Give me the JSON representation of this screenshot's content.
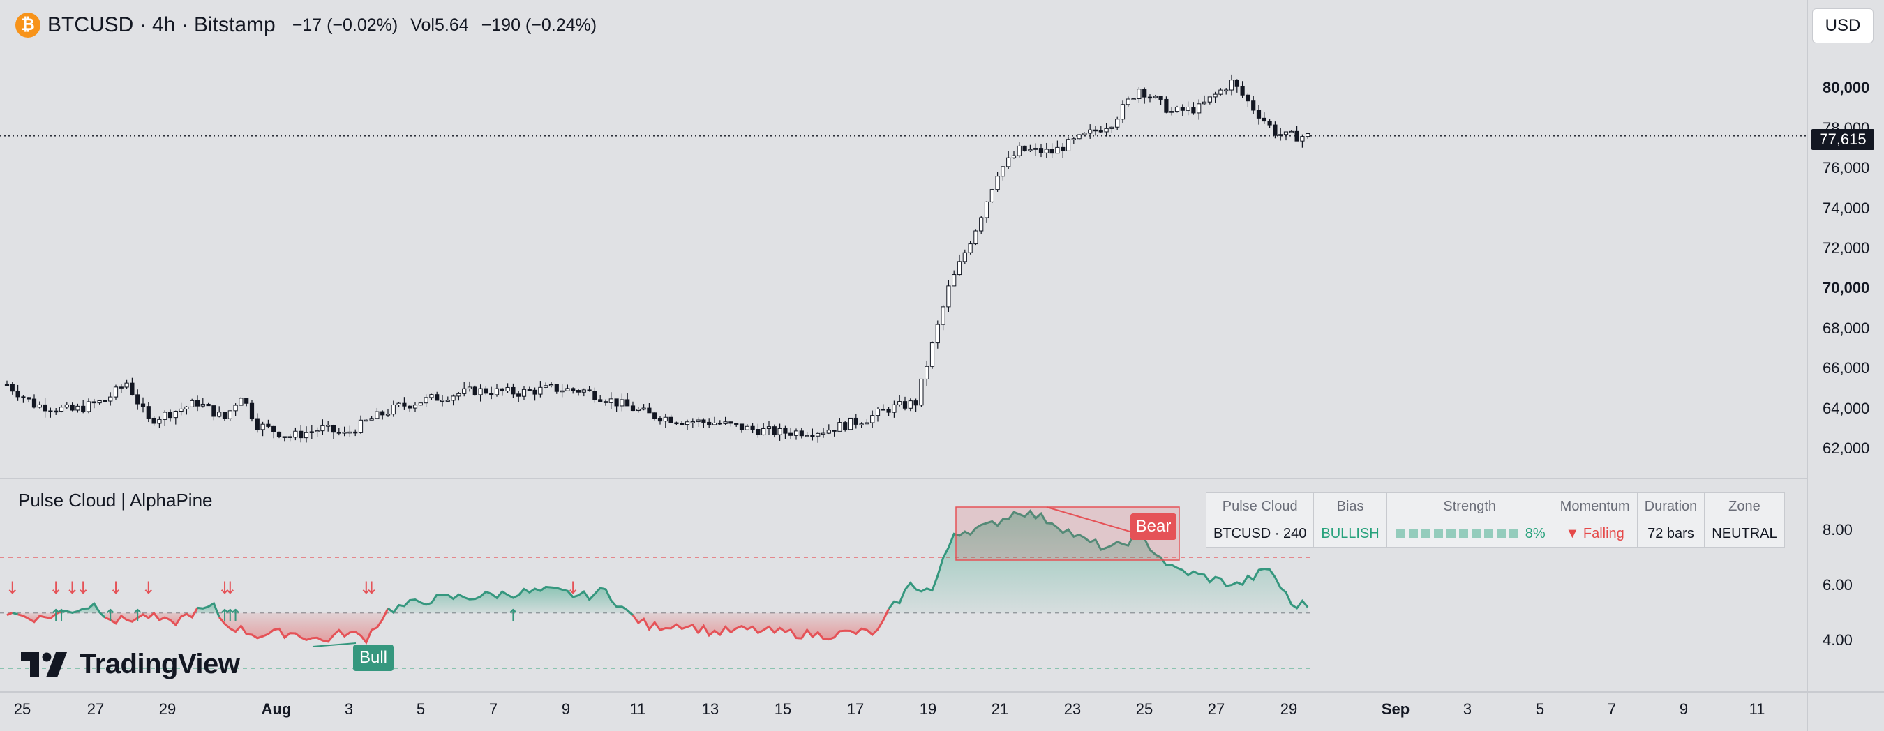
{
  "header": {
    "symbol_line": "BTCUSD · 4h · Bitstamp",
    "change": "−17 (−0.02%)",
    "vol_label": "Vol",
    "vol_value": "5.64",
    "vol_change": "−190 (−0.24%)"
  },
  "currency_button": "USD",
  "price_label": "77,615",
  "price_axis": {
    "labels": [
      "80,000",
      "78,000",
      "76,000",
      "74,000",
      "72,000",
      "70,000",
      "68,000",
      "66,000",
      "64,000",
      "62,000"
    ],
    "bold": [
      "80,000",
      "70,000"
    ],
    "range": [
      60720,
      83700
    ]
  },
  "indicator": {
    "title": "Pulse Cloud | AlphaPine",
    "axis_labels": [
      "8.00",
      "6.00",
      "4.00"
    ],
    "range": [
      2.2,
      9.7
    ],
    "upper_line": 7.0,
    "mid_line": 5.0,
    "lower_line": 3.0,
    "tags": {
      "bear": "Bear",
      "bull": "Bull"
    }
  },
  "table": {
    "headers": [
      "Pulse Cloud",
      "Bias",
      "Strength",
      "Momentum",
      "Duration",
      "Zone"
    ],
    "row": {
      "symbol": "BTCUSD · 240",
      "bias": "BULLISH",
      "strength": "8%",
      "momentum": "▼ Falling",
      "duration": "72 bars",
      "zone": "NEUTRAL"
    }
  },
  "time_axis": {
    "labels": [
      "25",
      "27",
      "29",
      "Aug",
      "3",
      "5",
      "7",
      "9",
      "11",
      "13",
      "15",
      "17",
      "19",
      "21",
      "23",
      "25",
      "27",
      "29",
      "Sep",
      "3",
      "5",
      "7",
      "9",
      "11"
    ],
    "bold": [
      "Aug",
      "Sep"
    ]
  },
  "logo_text": "TradingView",
  "chart_data": {
    "type": "candlestick",
    "symbol": "BTCUSD",
    "interval": "4h",
    "exchange": "Bitstamp",
    "last_price": 77615,
    "close_path": [
      [
        0,
        65200
      ],
      [
        5,
        64200
      ],
      [
        12,
        63900
      ],
      [
        18,
        64400
      ],
      [
        22,
        65300
      ],
      [
        26,
        63400
      ],
      [
        30,
        63800
      ],
      [
        35,
        64300
      ],
      [
        40,
        63500
      ],
      [
        43,
        64700
      ],
      [
        46,
        63200
      ],
      [
        52,
        62600
      ],
      [
        58,
        63000
      ],
      [
        62,
        62700
      ],
      [
        67,
        63500
      ],
      [
        72,
        64100
      ],
      [
        78,
        64500
      ],
      [
        86,
        64900
      ],
      [
        94,
        64800
      ],
      [
        100,
        65000
      ],
      [
        106,
        64900
      ],
      [
        113,
        64200
      ],
      [
        118,
        63700
      ],
      [
        124,
        63400
      ],
      [
        130,
        63300
      ],
      [
        136,
        63000
      ],
      [
        142,
        62800
      ],
      [
        150,
        62900
      ],
      [
        158,
        63500
      ],
      [
        162,
        64000
      ],
      [
        167,
        64300
      ],
      [
        173,
        70000
      ],
      [
        178,
        73000
      ],
      [
        182,
        75800
      ],
      [
        186,
        76900
      ],
      [
        192,
        76800
      ],
      [
        198,
        77600
      ],
      [
        203,
        78300
      ],
      [
        208,
        80000
      ],
      [
        214,
        78800
      ],
      [
        219,
        79000
      ],
      [
        225,
        80300
      ],
      [
        229,
        79000
      ],
      [
        233,
        77800
      ],
      [
        235,
        77600
      ],
      [
        239,
        77600
      ]
    ],
    "pulse_path": [
      [
        0,
        5.0
      ],
      [
        6,
        4.8
      ],
      [
        12,
        5.1
      ],
      [
        16,
        5.3
      ],
      [
        20,
        4.7
      ],
      [
        26,
        4.9
      ],
      [
        30,
        4.6
      ],
      [
        34,
        5.0
      ],
      [
        38,
        5.2
      ],
      [
        40,
        4.6
      ],
      [
        46,
        4.2
      ],
      [
        52,
        4.3
      ],
      [
        58,
        4.0
      ],
      [
        62,
        4.3
      ],
      [
        66,
        4.1
      ],
      [
        70,
        5.1
      ],
      [
        78,
        5.5
      ],
      [
        86,
        5.6
      ],
      [
        92,
        5.7
      ],
      [
        100,
        5.8
      ],
      [
        106,
        5.6
      ],
      [
        110,
        5.8
      ],
      [
        114,
        5.0
      ],
      [
        118,
        4.5
      ],
      [
        124,
        4.6
      ],
      [
        130,
        4.3
      ],
      [
        136,
        4.4
      ],
      [
        142,
        4.3
      ],
      [
        150,
        4.2
      ],
      [
        156,
        4.3
      ],
      [
        160,
        4.3
      ],
      [
        162,
        5.0
      ],
      [
        166,
        6.0
      ],
      [
        170,
        5.8
      ],
      [
        174,
        7.9
      ],
      [
        180,
        8.1
      ],
      [
        186,
        8.7
      ],
      [
        192,
        8.3
      ],
      [
        198,
        7.6
      ],
      [
        203,
        7.3
      ],
      [
        208,
        7.8
      ],
      [
        214,
        6.6
      ],
      [
        220,
        6.3
      ],
      [
        226,
        6.0
      ],
      [
        232,
        6.6
      ],
      [
        236,
        5.3
      ],
      [
        239,
        5.3
      ]
    ]
  }
}
